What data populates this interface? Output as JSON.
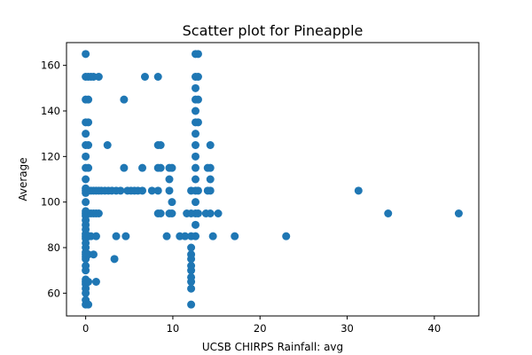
{
  "chart_data": {
    "type": "scatter",
    "title": "Scatter plot for Pineapple",
    "xlabel": "UCSB CHIRPS Rainfall: avg",
    "ylabel": "Average",
    "xlim": [
      -2.2,
      45.1
    ],
    "ylim": [
      50.0,
      170.0
    ],
    "xticks": [
      0,
      10,
      20,
      30,
      40
    ],
    "yticks": [
      60,
      80,
      100,
      120,
      140,
      160
    ],
    "grid": false,
    "marker_color": "#1f77b4",
    "points": [
      [
        0,
        55
      ],
      [
        0,
        57
      ],
      [
        0,
        60
      ],
      [
        0,
        62
      ],
      [
        0,
        64
      ],
      [
        0,
        65
      ],
      [
        0,
        66
      ],
      [
        0,
        70
      ],
      [
        0,
        72
      ],
      [
        0,
        75
      ],
      [
        0,
        76
      ],
      [
        0,
        77
      ],
      [
        0,
        78
      ],
      [
        0,
        80
      ],
      [
        0,
        82
      ],
      [
        0,
        84
      ],
      [
        0,
        85
      ],
      [
        0,
        86
      ],
      [
        0,
        88
      ],
      [
        0,
        90
      ],
      [
        0,
        92
      ],
      [
        0,
        94
      ],
      [
        0,
        95
      ],
      [
        0,
        96
      ],
      [
        0,
        100
      ],
      [
        0,
        104
      ],
      [
        0,
        105
      ],
      [
        0,
        106
      ],
      [
        0,
        110
      ],
      [
        0,
        115
      ],
      [
        0,
        120
      ],
      [
        0,
        125
      ],
      [
        0,
        130
      ],
      [
        0,
        135
      ],
      [
        0,
        145
      ],
      [
        0,
        155
      ],
      [
        0,
        165
      ],
      [
        0.3,
        55
      ],
      [
        0.3,
        65
      ],
      [
        0.3,
        77
      ],
      [
        0.3,
        85
      ],
      [
        0.3,
        95
      ],
      [
        0.3,
        105
      ],
      [
        0.3,
        115
      ],
      [
        0.3,
        125
      ],
      [
        0.3,
        135
      ],
      [
        0.3,
        145
      ],
      [
        0.3,
        155
      ],
      [
        0.6,
        85
      ],
      [
        0.6,
        95
      ],
      [
        0.6,
        105
      ],
      [
        0.6,
        155
      ],
      [
        0.9,
        77
      ],
      [
        0.9,
        95
      ],
      [
        0.9,
        105
      ],
      [
        0.9,
        155
      ],
      [
        1.2,
        65
      ],
      [
        1.2,
        85
      ],
      [
        1.2,
        95
      ],
      [
        1.2,
        105
      ],
      [
        1.5,
        95
      ],
      [
        1.5,
        105
      ],
      [
        1.5,
        155
      ],
      [
        1.8,
        105
      ],
      [
        2.2,
        105
      ],
      [
        2.5,
        125
      ],
      [
        2.6,
        105
      ],
      [
        3.0,
        105
      ],
      [
        3.3,
        75
      ],
      [
        3.5,
        85
      ],
      [
        3.5,
        105
      ],
      [
        4.0,
        105
      ],
      [
        4.4,
        115
      ],
      [
        4.4,
        145
      ],
      [
        4.6,
        85
      ],
      [
        4.8,
        105
      ],
      [
        5.2,
        105
      ],
      [
        5.6,
        105
      ],
      [
        6.0,
        105
      ],
      [
        6.5,
        105
      ],
      [
        6.5,
        115
      ],
      [
        6.8,
        155
      ],
      [
        7.6,
        105
      ],
      [
        8.3,
        95
      ],
      [
        8.3,
        105
      ],
      [
        8.3,
        115
      ],
      [
        8.3,
        125
      ],
      [
        8.3,
        155
      ],
      [
        8.6,
        95
      ],
      [
        8.6,
        115
      ],
      [
        8.6,
        125
      ],
      [
        9.3,
        85
      ],
      [
        9.6,
        95
      ],
      [
        9.6,
        105
      ],
      [
        9.6,
        110
      ],
      [
        9.6,
        115
      ],
      [
        9.9,
        95
      ],
      [
        9.9,
        100
      ],
      [
        9.9,
        115
      ],
      [
        10.8,
        85
      ],
      [
        11.4,
        85
      ],
      [
        11.6,
        95
      ],
      [
        12.1,
        55
      ],
      [
        12.1,
        62
      ],
      [
        12.1,
        65
      ],
      [
        12.1,
        67
      ],
      [
        12.1,
        70
      ],
      [
        12.1,
        72
      ],
      [
        12.1,
        75
      ],
      [
        12.1,
        77
      ],
      [
        12.1,
        80
      ],
      [
        12.1,
        85
      ],
      [
        12.1,
        95
      ],
      [
        12.1,
        105
      ],
      [
        12.6,
        85
      ],
      [
        12.6,
        90
      ],
      [
        12.6,
        95
      ],
      [
        12.6,
        100
      ],
      [
        12.6,
        105
      ],
      [
        12.6,
        110
      ],
      [
        12.6,
        115
      ],
      [
        12.6,
        120
      ],
      [
        12.6,
        125
      ],
      [
        12.6,
        130
      ],
      [
        12.6,
        135
      ],
      [
        12.6,
        140
      ],
      [
        12.6,
        145
      ],
      [
        12.6,
        150
      ],
      [
        12.6,
        155
      ],
      [
        12.6,
        165
      ],
      [
        12.9,
        95
      ],
      [
        12.9,
        105
      ],
      [
        12.9,
        135
      ],
      [
        12.9,
        145
      ],
      [
        12.9,
        155
      ],
      [
        12.9,
        165
      ],
      [
        13.8,
        95
      ],
      [
        14.0,
        105
      ],
      [
        14.0,
        115
      ],
      [
        14.3,
        95
      ],
      [
        14.3,
        105
      ],
      [
        14.3,
        110
      ],
      [
        14.3,
        115
      ],
      [
        14.3,
        125
      ],
      [
        14.6,
        85
      ],
      [
        15.2,
        95
      ],
      [
        17.1,
        85
      ],
      [
        23.0,
        85
      ],
      [
        31.3,
        105
      ],
      [
        34.7,
        95
      ],
      [
        42.8,
        95
      ]
    ]
  }
}
